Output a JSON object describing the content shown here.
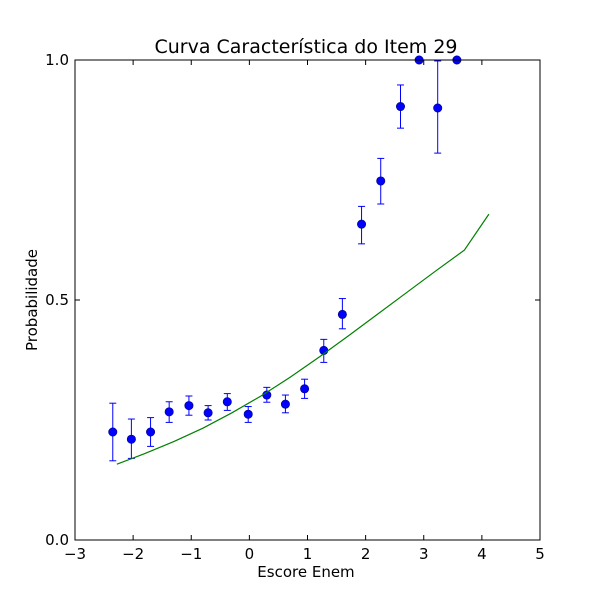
{
  "chart_data": {
    "type": "scatter",
    "title": "Curva Característica do Item 29",
    "xlabel": "Escore Enem",
    "ylabel": "Probabilidade",
    "xlim": [
      -3,
      5
    ],
    "ylim": [
      0,
      1
    ],
    "xticks": [
      -3,
      -2,
      -1,
      0,
      1,
      2,
      3,
      4,
      5
    ],
    "xtick_labels": [
      "−3",
      "−2",
      "−1",
      "0",
      "1",
      "2",
      "3",
      "4",
      "5"
    ],
    "yticks": [
      0,
      0.5,
      1
    ],
    "ytick_labels": [
      "0.0",
      "0.5",
      "1.0"
    ],
    "grid": false,
    "series": [
      {
        "kind": "errorbar",
        "color": "#0000ff",
        "x": [
          -2.35,
          -2.03,
          -1.7,
          -1.38,
          -1.04,
          -0.71,
          -0.38,
          -0.02,
          0.3,
          0.62,
          0.95,
          1.28,
          1.6,
          1.93,
          2.26,
          2.6,
          2.92,
          3.24,
          3.57
        ],
        "y": [
          0.225,
          0.21,
          0.225,
          0.267,
          0.28,
          0.265,
          0.288,
          0.262,
          0.302,
          0.283,
          0.315,
          0.395,
          0.47,
          0.658,
          0.748,
          0.903,
          1.0,
          0.9,
          1.0
        ],
        "yerr_low": [
          0.165,
          0.17,
          0.195,
          0.245,
          0.26,
          0.25,
          0.27,
          0.245,
          0.287,
          0.265,
          0.295,
          0.37,
          0.44,
          0.617,
          0.7,
          0.858,
          1.0,
          0.806,
          1.0
        ],
        "yerr_high": [
          0.285,
          0.252,
          0.255,
          0.288,
          0.3,
          0.28,
          0.305,
          0.278,
          0.318,
          0.302,
          0.335,
          0.418,
          0.503,
          0.695,
          0.795,
          0.948,
          1.0,
          0.998,
          1.0
        ]
      },
      {
        "kind": "line",
        "color": "#008000",
        "x": [
          -2.28,
          -1.8,
          -1.3,
          -0.8,
          -0.3,
          0.2,
          0.7,
          1.2,
          1.7,
          2.2,
          2.7,
          3.2,
          3.7,
          4.12
        ],
        "y": [
          0.158,
          0.18,
          0.205,
          0.233,
          0.265,
          0.3,
          0.339,
          0.381,
          0.425,
          0.47,
          0.515,
          0.56,
          0.604,
          0.679
        ]
      }
    ]
  }
}
